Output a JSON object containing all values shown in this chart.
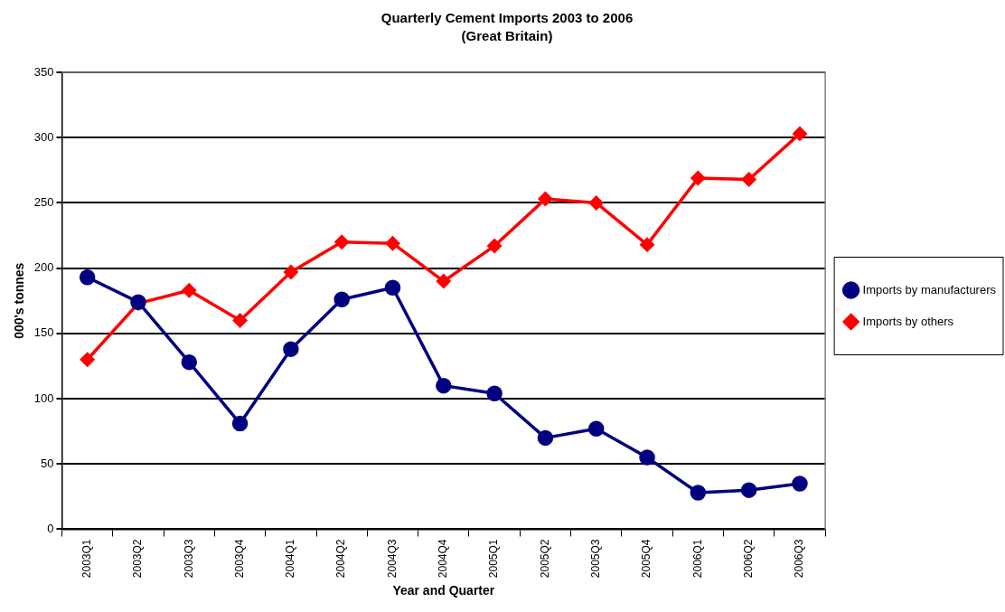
{
  "chart_data": {
    "type": "line",
    "title": "Quarterly Cement Imports 2003 to 2006",
    "subtitle": "(Great Britain)",
    "xlabel": "Year and Quarter",
    "ylabel": "000's tonnes",
    "categories": [
      "2003Q1",
      "2003Q2",
      "2003Q3",
      "2003Q4",
      "2004Q1",
      "2004Q2",
      "2004Q3",
      "2004Q4",
      "2005Q1",
      "2005Q2",
      "2005Q3",
      "2005Q4",
      "2006Q1",
      "2006Q2",
      "2006Q3"
    ],
    "series": [
      {
        "name": "Imports by manufacturers",
        "color": "#000080",
        "marker": "circle",
        "values": [
          193,
          174,
          128,
          81,
          138,
          176,
          185,
          110,
          104,
          70,
          77,
          55,
          28,
          30,
          35
        ]
      },
      {
        "name": "Imports by others",
        "color": "#ff0000",
        "marker": "diamond",
        "values": [
          130,
          173,
          183,
          160,
          197,
          220,
          219,
          190,
          217,
          253,
          250,
          218,
          269,
          268,
          303
        ]
      }
    ],
    "ylim": [
      0,
      350
    ],
    "yticks": [
      0,
      50,
      100,
      150,
      200,
      250,
      300,
      350
    ],
    "grid": "y",
    "legend": "right",
    "line_style": "solid"
  }
}
